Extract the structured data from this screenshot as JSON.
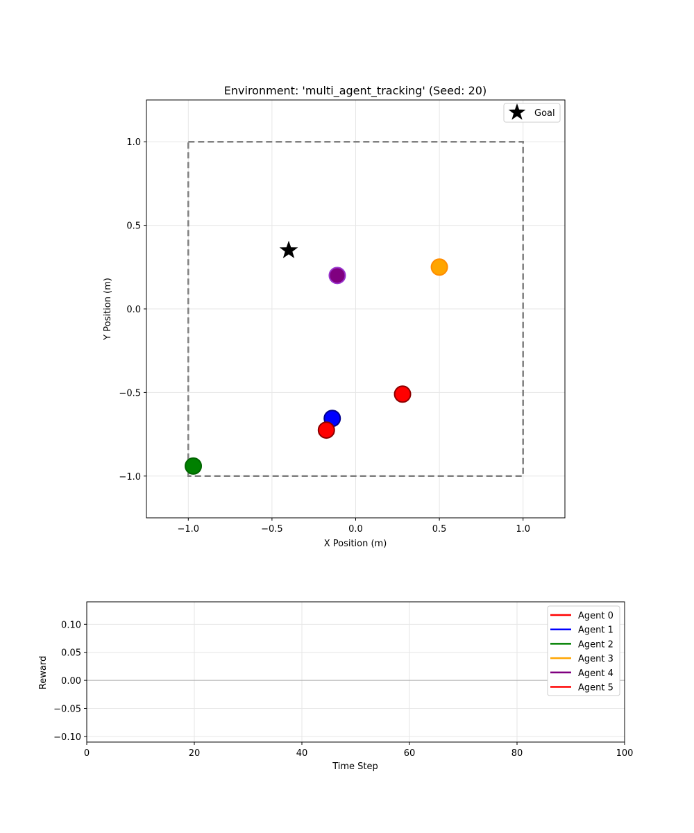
{
  "colors": {
    "boundary": "#808080",
    "grid": "#e6e6e6",
    "agent_0": "#ff0000",
    "agent_1": "#0000ff",
    "agent_2": "#008000",
    "agent_3": "#ffa500",
    "agent_4": "#800080",
    "agent_5": "#ff0000",
    "goal": "#000000"
  },
  "chart_data": [
    {
      "type": "scatter",
      "title": "Environment: 'multi_agent_tracking' (Seed: 20)",
      "xlabel": "X Position (m)",
      "ylabel": "Y Position (m)",
      "xlim": [
        -1.25,
        1.25
      ],
      "ylim": [
        -1.25,
        1.25
      ],
      "xticks": [
        -1.0,
        -0.5,
        0.0,
        0.5,
        1.0
      ],
      "yticks": [
        -1.0,
        -0.5,
        0.0,
        0.5,
        1.0
      ],
      "xtick_labels": [
        "−1.0",
        "−0.5",
        "0.0",
        "0.5",
        "1.0"
      ],
      "ytick_labels": [
        "−1.0",
        "−0.5",
        "0.0",
        "0.5",
        "1.0"
      ],
      "grid": true,
      "legend": {
        "position": "upper-right",
        "label": "Goal"
      },
      "boundary": {
        "x0": -1.0,
        "y0": -1.0,
        "x1": 1.0,
        "y1": 1.0,
        "style": "dashed"
      },
      "goal": {
        "x": -0.4,
        "y": 0.35
      },
      "agents": [
        {
          "name": "Agent 0",
          "x": 0.28,
          "y": -0.51,
          "color": "#ff0000",
          "edge": "#8b0000"
        },
        {
          "name": "Agent 1",
          "x": -0.14,
          "y": -0.655,
          "color": "#0000ff",
          "edge": "#00008b"
        },
        {
          "name": "Agent 2",
          "x": -0.97,
          "y": -0.94,
          "color": "#008000",
          "edge": "#006400"
        },
        {
          "name": "Agent 3",
          "x": 0.5,
          "y": 0.25,
          "color": "#ffa500",
          "edge": "#ff8c00"
        },
        {
          "name": "Agent 4",
          "x": -0.11,
          "y": 0.2,
          "color": "#800080",
          "edge": "#9932cc"
        },
        {
          "name": "Agent 5",
          "x": -0.175,
          "y": -0.725,
          "color": "#ff0000",
          "edge": "#8b0000"
        }
      ]
    },
    {
      "type": "line",
      "title": "",
      "xlabel": "Time Step",
      "ylabel": "Reward",
      "xlim": [
        0,
        100
      ],
      "ylim": [
        -0.11,
        0.14
      ],
      "xticks": [
        0,
        20,
        40,
        60,
        80,
        100
      ],
      "yticks": [
        -0.1,
        -0.05,
        0.0,
        0.05,
        0.1
      ],
      "xtick_labels": [
        "0",
        "20",
        "40",
        "60",
        "80",
        "100"
      ],
      "ytick_labels": [
        "−0.10",
        "−0.05",
        "0.00",
        "0.05",
        "0.10"
      ],
      "grid": true,
      "zero_line": 0.0,
      "legend": {
        "position": "upper-right"
      },
      "series": [
        {
          "name": "Agent 0",
          "color": "#ff0000",
          "values": []
        },
        {
          "name": "Agent 1",
          "color": "#0000ff",
          "values": []
        },
        {
          "name": "Agent 2",
          "color": "#008000",
          "values": []
        },
        {
          "name": "Agent 3",
          "color": "#ffa500",
          "values": []
        },
        {
          "name": "Agent 4",
          "color": "#800080",
          "values": []
        },
        {
          "name": "Agent 5",
          "color": "#ff0000",
          "values": []
        }
      ]
    }
  ]
}
